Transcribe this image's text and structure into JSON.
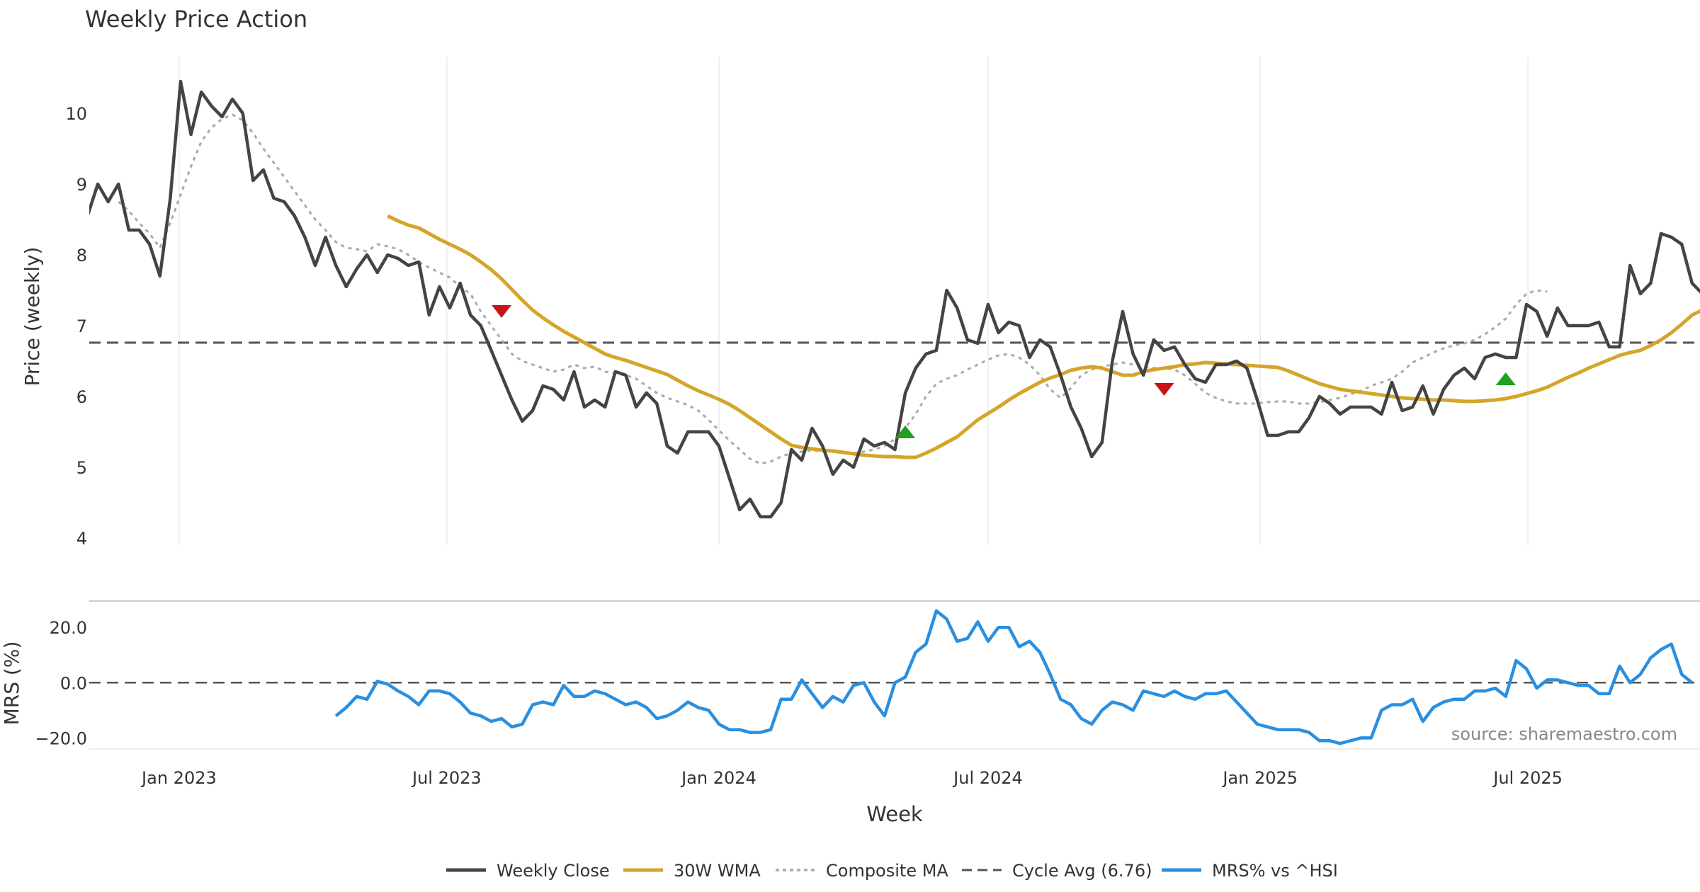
{
  "chart_data": {
    "title": "Weekly Price Action",
    "xlabel": "Week",
    "source_note": "source: sharemaestro.com",
    "x_ticks": [
      "Jan 2023",
      "Jul 2023",
      "Jan 2024",
      "Jul 2024",
      "Jan 2025",
      "Jul 2025"
    ],
    "x_tick_dates": [
      "2023-01-01",
      "2023-07-01",
      "2024-01-01",
      "2024-07-01",
      "2025-01-01",
      "2025-07-01"
    ],
    "x_range": [
      "2022-10-24",
      "2025-10-27"
    ],
    "colors": {
      "close": "#444444",
      "wma": "#d4a52a",
      "composite": "#aaaaaa",
      "cycle": "#555555",
      "mrs": "#2a8fe0",
      "sell": "#c81414",
      "buy": "#1fa31f"
    },
    "price_panel": {
      "type": "line",
      "ylabel": "Price (weekly)",
      "ylim": [
        3.9,
        10.8
      ],
      "y_ticks": [
        4,
        5,
        6,
        7,
        8,
        9,
        10
      ],
      "grid": "vertical",
      "series": [
        {
          "key": "close",
          "name": "Weekly Close",
          "x_start": "2022-10-31",
          "x_step_days": 7,
          "values": [
            8.55,
            9.0,
            8.75,
            9.0,
            8.35,
            8.35,
            8.15,
            7.7,
            8.8,
            10.45,
            9.7,
            10.3,
            10.1,
            9.95,
            10.2,
            10.0,
            9.05,
            9.2,
            8.8,
            8.75,
            8.55,
            8.25,
            7.85,
            8.25,
            7.85,
            7.55,
            7.8,
            8.0,
            7.75,
            8.0,
            7.95,
            7.85,
            7.9,
            7.15,
            7.55,
            7.25,
            7.6,
            7.15,
            7.0,
            6.65,
            6.3,
            5.95,
            5.65,
            5.8,
            6.15,
            6.1,
            5.95,
            6.35,
            5.85,
            5.95,
            5.85,
            6.35,
            6.3,
            5.85,
            6.05,
            5.9,
            5.3,
            5.2,
            5.5,
            5.5,
            5.5,
            5.3,
            4.85,
            4.4,
            4.55,
            4.3,
            4.3,
            4.5,
            5.25,
            5.1,
            5.55,
            5.3,
            4.9,
            5.1,
            5.0,
            5.4,
            5.3,
            5.35,
            5.25,
            6.05,
            6.4,
            6.6,
            6.65,
            7.5,
            7.25,
            6.8,
            6.75,
            7.3,
            6.9,
            7.05,
            7.0,
            6.55,
            6.8,
            6.7,
            6.3,
            5.85,
            5.55,
            5.15,
            5.35,
            6.5,
            7.2,
            6.6,
            6.3,
            6.8,
            6.65,
            6.7,
            6.45,
            6.25,
            6.2,
            6.45,
            6.45,
            6.5,
            6.4,
            5.95,
            5.45,
            5.45,
            5.5,
            5.5,
            5.7,
            6.0,
            5.9,
            5.75,
            5.85,
            5.85,
            5.85,
            5.75,
            6.2,
            5.8,
            5.85,
            6.15,
            5.75,
            6.1,
            6.3,
            6.4,
            6.25,
            6.55,
            6.6,
            6.55,
            6.55,
            7.3,
            7.2,
            6.85,
            7.25,
            7.0,
            7.0,
            7.0,
            7.05,
            6.7,
            6.7,
            7.85,
            7.45,
            7.6,
            8.3,
            8.25,
            8.15,
            7.6,
            7.45
          ]
        },
        {
          "key": "wma",
          "name": "30W WMA",
          "x_start": "2023-05-22",
          "x_step_days": 7,
          "values": [
            8.55,
            8.48,
            8.42,
            8.38,
            8.3,
            8.22,
            8.15,
            8.08,
            8.0,
            7.9,
            7.79,
            7.66,
            7.51,
            7.36,
            7.22,
            7.11,
            7.01,
            6.92,
            6.84,
            6.76,
            6.68,
            6.6,
            6.55,
            6.51,
            6.46,
            6.41,
            6.36,
            6.31,
            6.23,
            6.15,
            6.08,
            6.02,
            5.96,
            5.89,
            5.8,
            5.7,
            5.6,
            5.5,
            5.4,
            5.31,
            5.28,
            5.26,
            5.24,
            5.23,
            5.21,
            5.19,
            5.17,
            5.16,
            5.15,
            5.15,
            5.14,
            5.14,
            5.2,
            5.27,
            5.35,
            5.43,
            5.55,
            5.67,
            5.76,
            5.85,
            5.95,
            6.04,
            6.12,
            6.2,
            6.26,
            6.31,
            6.37,
            6.4,
            6.42,
            6.4,
            6.35,
            6.3,
            6.3,
            6.35,
            6.38,
            6.4,
            6.42,
            6.45,
            6.46,
            6.48,
            6.47,
            6.46,
            6.45,
            6.44,
            6.43,
            6.42,
            6.41,
            6.36,
            6.3,
            6.24,
            6.18,
            6.14,
            6.1,
            6.08,
            6.06,
            6.04,
            6.02,
            6.0,
            5.98,
            5.97,
            5.96,
            5.95,
            5.95,
            5.94,
            5.93,
            5.93,
            5.94,
            5.95,
            5.97,
            6.0,
            6.04,
            6.08,
            6.13,
            6.2,
            6.27,
            6.33,
            6.4,
            6.46,
            6.52,
            6.58,
            6.62,
            6.65,
            6.72,
            6.8,
            6.9,
            7.02,
            7.15,
            7.22,
            7.26
          ]
        },
        {
          "key": "composite",
          "name": "Composite MA",
          "x_start": "2022-11-21",
          "x_step_days": 7,
          "values": [
            8.75,
            8.62,
            8.45,
            8.3,
            8.1,
            8.45,
            8.85,
            9.25,
            9.6,
            9.8,
            9.92,
            9.98,
            9.9,
            9.72,
            9.5,
            9.3,
            9.1,
            8.9,
            8.7,
            8.5,
            8.35,
            8.18,
            8.1,
            8.08,
            8.05,
            8.15,
            8.12,
            8.08,
            8.0,
            7.9,
            7.82,
            7.75,
            7.68,
            7.55,
            7.45,
            7.2,
            7.0,
            6.8,
            6.6,
            6.5,
            6.45,
            6.4,
            6.35,
            6.38,
            6.45,
            6.4,
            6.42,
            6.35,
            6.33,
            6.3,
            6.25,
            6.15,
            6.05,
            5.98,
            5.93,
            5.88,
            5.8,
            5.67,
            5.52,
            5.38,
            5.25,
            5.12,
            5.05,
            5.08,
            5.15,
            5.2,
            5.22,
            5.24,
            5.22,
            5.22,
            5.2,
            5.2,
            5.22,
            5.25,
            5.3,
            5.4,
            5.55,
            5.75,
            6.0,
            6.18,
            6.25,
            6.3,
            6.38,
            6.45,
            6.52,
            6.58,
            6.6,
            6.55,
            6.45,
            6.3,
            6.1,
            5.98,
            6.12,
            6.3,
            6.38,
            6.42,
            6.45,
            6.48,
            6.45,
            6.42,
            6.4,
            6.4,
            6.38,
            6.3,
            6.18,
            6.05,
            5.98,
            5.93,
            5.9,
            5.9,
            5.9,
            5.92,
            5.93,
            5.93,
            5.9,
            5.9,
            5.92,
            5.95,
            5.98,
            6.03,
            6.08,
            6.15,
            6.2,
            6.25,
            6.35,
            6.48,
            6.55,
            6.62,
            6.68,
            6.72,
            6.75,
            6.8,
            6.88,
            6.98,
            7.1,
            7.3,
            7.45,
            7.5,
            7.48
          ]
        },
        {
          "key": "cycle",
          "name": "Cycle Avg (6.76)",
          "value": 6.76
        }
      ],
      "signals": [
        {
          "type": "sell",
          "date": "2023-08-07",
          "value": 7.2
        },
        {
          "type": "buy",
          "date": "2024-05-06",
          "value": 5.5
        },
        {
          "type": "sell",
          "date": "2024-10-28",
          "value": 6.1
        },
        {
          "type": "buy",
          "date": "2025-06-16",
          "value": 6.25
        }
      ]
    },
    "mrs_panel": {
      "type": "line",
      "ylabel": "MRS (%)",
      "ylim": [
        -24,
        28
      ],
      "y_ticks": [
        "−20.0",
        "0.0",
        "20.0"
      ],
      "y_tick_values": [
        -20,
        0,
        20
      ],
      "zero_line": true,
      "series": [
        {
          "key": "mrs",
          "name": "MRS% vs ^HSI",
          "x_start": "2023-04-17",
          "x_step_days": 7,
          "values": [
            -12,
            -9,
            -5,
            -6,
            0.5,
            -0.5,
            -3,
            -5,
            -8,
            -3,
            -3,
            -4,
            -7,
            -11,
            -12,
            -14,
            -13,
            -16,
            -15,
            -8,
            -7,
            -8,
            -1,
            -5,
            -5,
            -3,
            -4,
            -6,
            -8,
            -7,
            -9,
            -13,
            -12,
            -10,
            -7,
            -9,
            -10,
            -15,
            -17,
            -17,
            -18,
            -18,
            -17,
            -6,
            -6,
            1,
            -4,
            -9,
            -5,
            -7,
            -1,
            0,
            -7,
            -12,
            0,
            2,
            11,
            14,
            26,
            23,
            15,
            16,
            22,
            15,
            20,
            20,
            13,
            15,
            11,
            3,
            -6,
            -8,
            -13,
            -15,
            -10,
            -7,
            -8,
            -10,
            -3,
            -4,
            -5,
            -3,
            -5,
            -6,
            -4,
            -4,
            -3,
            -7,
            -11,
            -15,
            -16,
            -17,
            -17,
            -17,
            -18,
            -21,
            -21,
            -22,
            -21,
            -20,
            -20,
            -10,
            -8,
            -8,
            -6,
            -14,
            -9,
            -7,
            -6,
            -6,
            -3,
            -3,
            -2,
            -5,
            8,
            5,
            -2,
            1,
            1,
            0,
            -1,
            -1,
            -4,
            -4,
            6,
            0,
            3,
            9,
            12,
            14,
            3,
            0
          ]
        }
      ]
    },
    "legend": {
      "placement": "bottom-center",
      "entries": [
        {
          "key": "close",
          "label": "Weekly Close"
        },
        {
          "key": "wma",
          "label": "30W WMA"
        },
        {
          "key": "composite",
          "label": "Composite MA"
        },
        {
          "key": "cycle",
          "label": "Cycle Avg (6.76)"
        },
        {
          "key": "mrs",
          "label": "MRS% vs ^HSI"
        }
      ]
    }
  }
}
